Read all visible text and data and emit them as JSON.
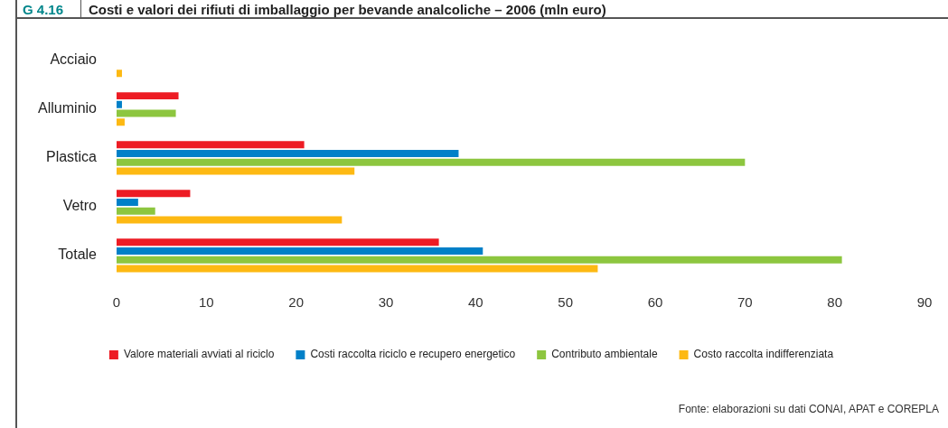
{
  "chart_data": {
    "type": "bar",
    "orientation": "horizontal",
    "title": "Costi e valori dei rifiuti di imballaggio per bevande analcoliche – 2006 (mln euro)",
    "categories": [
      "Acciaio",
      "Alluminio",
      "Plastica",
      "Vetro",
      "Totale"
    ],
    "series": [
      {
        "name": "Valore materiali avviati al riciclo",
        "color": "#ed1c24",
        "values": [
          null,
          6.9,
          20.9,
          8.2,
          35.9
        ]
      },
      {
        "name": "Costi raccolta riciclo e recupero energetico",
        "color": "#0080c8",
        "values": [
          null,
          0.6,
          38.1,
          2.4,
          40.8
        ]
      },
      {
        "name": "Contributo ambientale",
        "color": "#8dc63f",
        "values": [
          null,
          6.6,
          70,
          4.3,
          80.8
        ]
      },
      {
        "name": "Costo raccolta indifferenziata",
        "color": "#fdb913",
        "values": [
          0.6,
          0.9,
          26.5,
          25.1,
          53.6
        ]
      }
    ],
    "xlim": [
      0,
      90
    ],
    "xticks": [
      0,
      10,
      20,
      30,
      40,
      50,
      60,
      70,
      80,
      90
    ],
    "legend": "bottom",
    "annotations": [
      "G 4.16",
      "Fonte: elaborazioni su dati CONAI, APAT e COREPLA"
    ]
  }
}
